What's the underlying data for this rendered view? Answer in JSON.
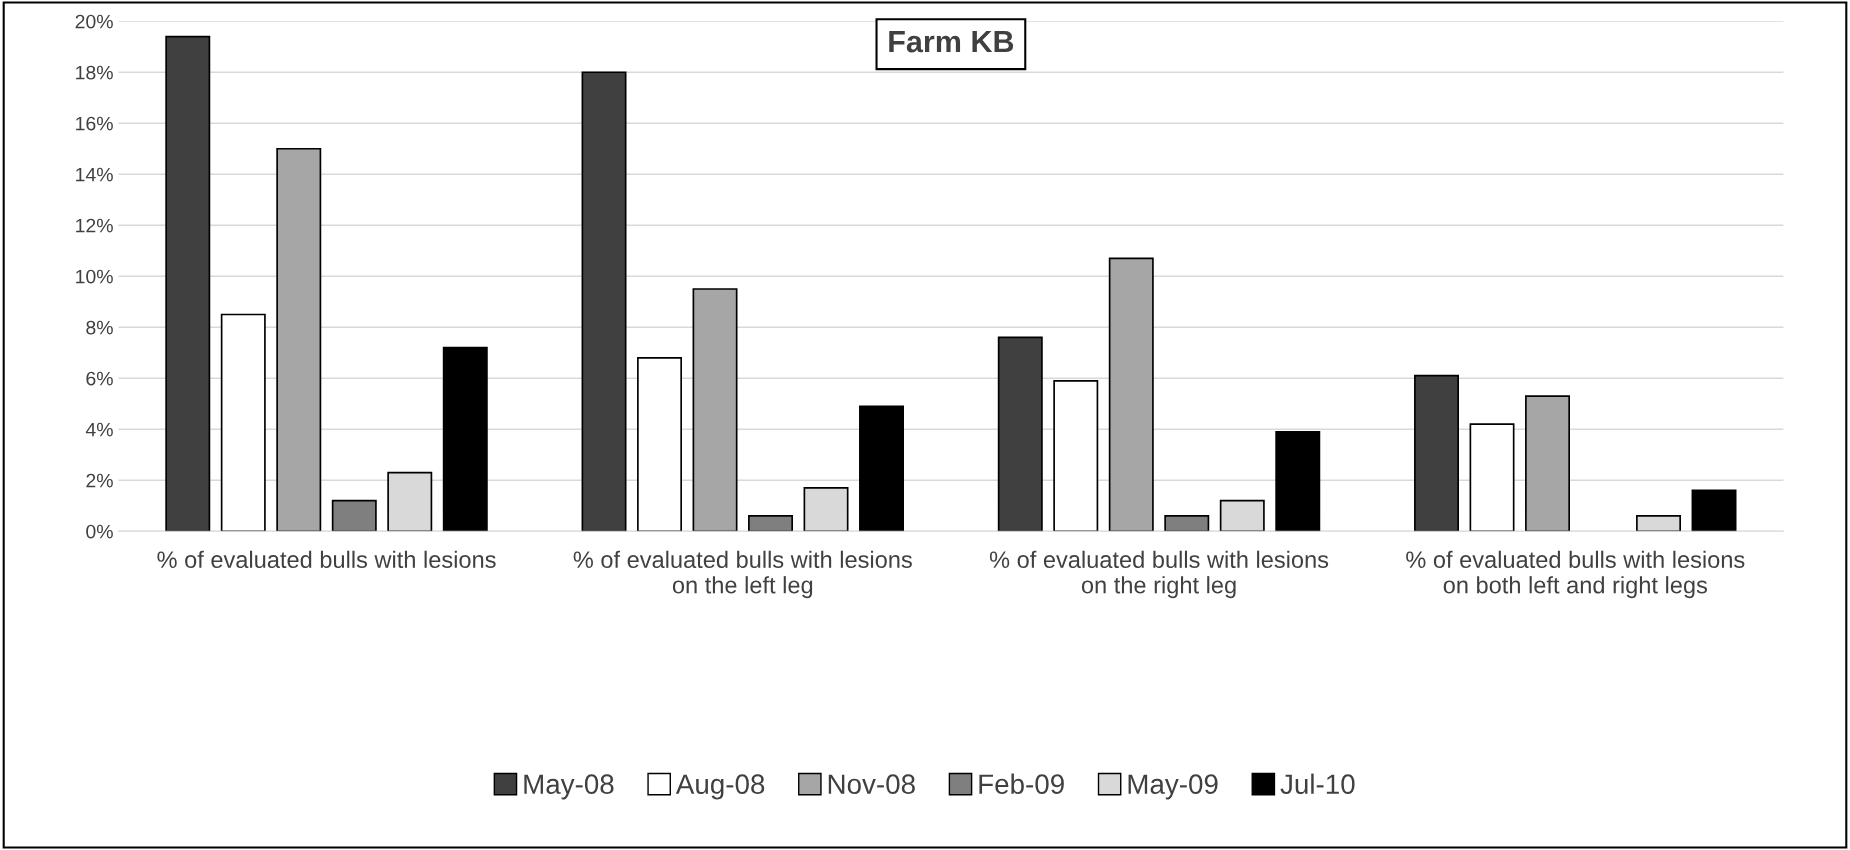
{
  "chart_data": {
    "type": "bar",
    "title": "Farm KB",
    "categories": [
      "% of evaluated bulls with lesions",
      "% of evaluated bulls with lesions\non the left leg",
      "% of evaluated bulls with lesions\non the right leg",
      "% of evaluated bulls with lesions\non both left and right legs"
    ],
    "series": [
      {
        "name": "May-08",
        "color": "#404040",
        "values": [
          19.4,
          18.0,
          7.6,
          6.1
        ]
      },
      {
        "name": "Aug-08",
        "color": "#ffffff",
        "values": [
          8.5,
          6.8,
          5.9,
          4.2
        ]
      },
      {
        "name": "Nov-08",
        "color": "#a6a6a6",
        "values": [
          15.0,
          9.5,
          10.7,
          5.3
        ]
      },
      {
        "name": "Feb-09",
        "color": "#7f7f7f",
        "values": [
          1.2,
          0.6,
          0.6,
          null
        ]
      },
      {
        "name": "May-09",
        "color": "#d9d9d9",
        "values": [
          2.3,
          1.7,
          1.2,
          0.6
        ]
      },
      {
        "name": "Jul-10",
        "color": "#000000",
        "values": [
          7.2,
          4.9,
          3.9,
          1.6
        ]
      }
    ],
    "ylim": [
      0,
      20
    ],
    "yticks": [
      {
        "value": 0,
        "label": "0%"
      },
      {
        "value": 2,
        "label": "2%"
      },
      {
        "value": 4,
        "label": "4%"
      },
      {
        "value": 6,
        "label": "6%"
      },
      {
        "value": 8,
        "label": "8%"
      },
      {
        "value": 10,
        "label": "10%"
      },
      {
        "value": 12,
        "label": "12%"
      },
      {
        "value": 14,
        "label": "14%"
      },
      {
        "value": 16,
        "label": "16%"
      },
      {
        "value": 18,
        "label": "18%"
      },
      {
        "value": 20,
        "label": "20%"
      }
    ],
    "grid": "y",
    "legend": "bottom"
  }
}
